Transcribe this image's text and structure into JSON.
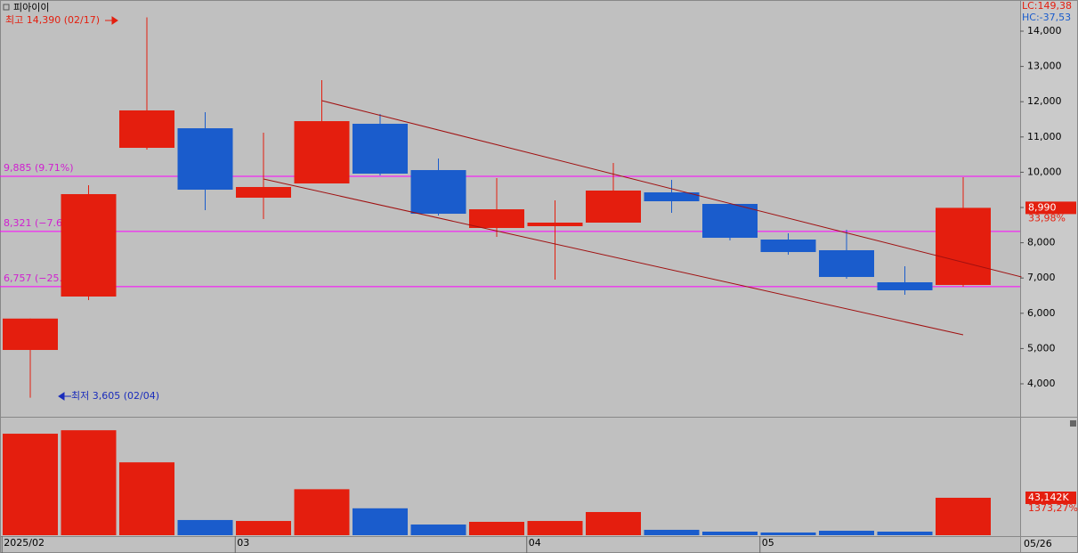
{
  "chart_data": {
    "type": "candlestick",
    "title": "피아이이",
    "categories": [
      "2025/02",
      null,
      null,
      null,
      "03",
      null,
      null,
      null,
      null,
      "04",
      null,
      null,
      null,
      "05",
      null,
      null,
      null
    ],
    "open": [
      4960,
      6475,
      10692,
      11247,
      9278,
      9682,
      11374,
      10061,
      8419,
      8470,
      8571,
      9429,
      9101,
      8091,
      7788,
      6879,
      6803
    ],
    "high": [
      5850,
      9631,
      14390,
      11702,
      11121,
      12611,
      11652,
      10389,
      9833,
      9202,
      10263,
      9783,
      9101,
      8268,
      8369,
      7333,
      9859
    ],
    "low": [
      3605,
      6374,
      10641,
      8924,
      8672,
      9682,
      9909,
      8773,
      8167,
      6955,
      8571,
      8848,
      8066,
      7662,
      6980,
      6525,
      6753
    ],
    "close": [
      5850,
      9379,
      11753,
      9505,
      9581,
      11449,
      9960,
      8823,
      8949,
      8571,
      9480,
      9177,
      8141,
      7737,
      7030,
      6652,
      8990
    ],
    "up_color": "#e41e0e",
    "down_color": "#1a5ccc",
    "ylim": [
      3091,
      14884
    ],
    "yticks": [
      {
        "value": 4000,
        "label": "4,000"
      },
      {
        "value": 5000,
        "label": "5,000"
      },
      {
        "value": 6000,
        "label": "6,000"
      },
      {
        "value": 7000,
        "label": "7,000"
      },
      {
        "value": 8000,
        "label": "8,000"
      },
      {
        "value": 9000,
        "label": "9,000"
      },
      {
        "value": 10000,
        "label": "10,000"
      },
      {
        "value": 11000,
        "label": "11,000"
      },
      {
        "value": 12000,
        "label": "12,000"
      },
      {
        "value": 13000,
        "label": "13,000"
      },
      {
        "value": 14000,
        "label": "14,000"
      }
    ],
    "levels": [
      {
        "value": 9885,
        "label": "9,885 (9.71%)"
      },
      {
        "value": 8321,
        "label": "8,321 (−7.65%)"
      },
      {
        "value": 6757,
        "label": "6,757 (−25.01%)"
      }
    ],
    "level_color": "#ff00ff",
    "trendlines": [
      {
        "x": [
          5,
          17
        ],
        "y": [
          12030,
          7030
        ]
      },
      {
        "x": [
          4,
          16
        ],
        "y": [
          9808,
          5389
        ]
      }
    ],
    "trend_color": "#a01010",
    "high_note": "최고 14,390 (02/17)",
    "low_note": "최저 3,605 (02/04)",
    "lc_text": "LC:149,38",
    "hc_text": "HC:-37,53",
    "last_price_label": "8,990",
    "last_change": "33,98%",
    "volume": {
      "values": [
        117000,
        121000,
        84000,
        17500,
        16400,
        53000,
        31000,
        12300,
        15400,
        16400,
        26700,
        6200,
        4100,
        3100,
        5100,
        4100,
        43142
      ],
      "ylim": [
        0,
        134500
      ],
      "last_label": "43,142K",
      "last_change": "1373,27%"
    },
    "last_date": "05/26"
  }
}
